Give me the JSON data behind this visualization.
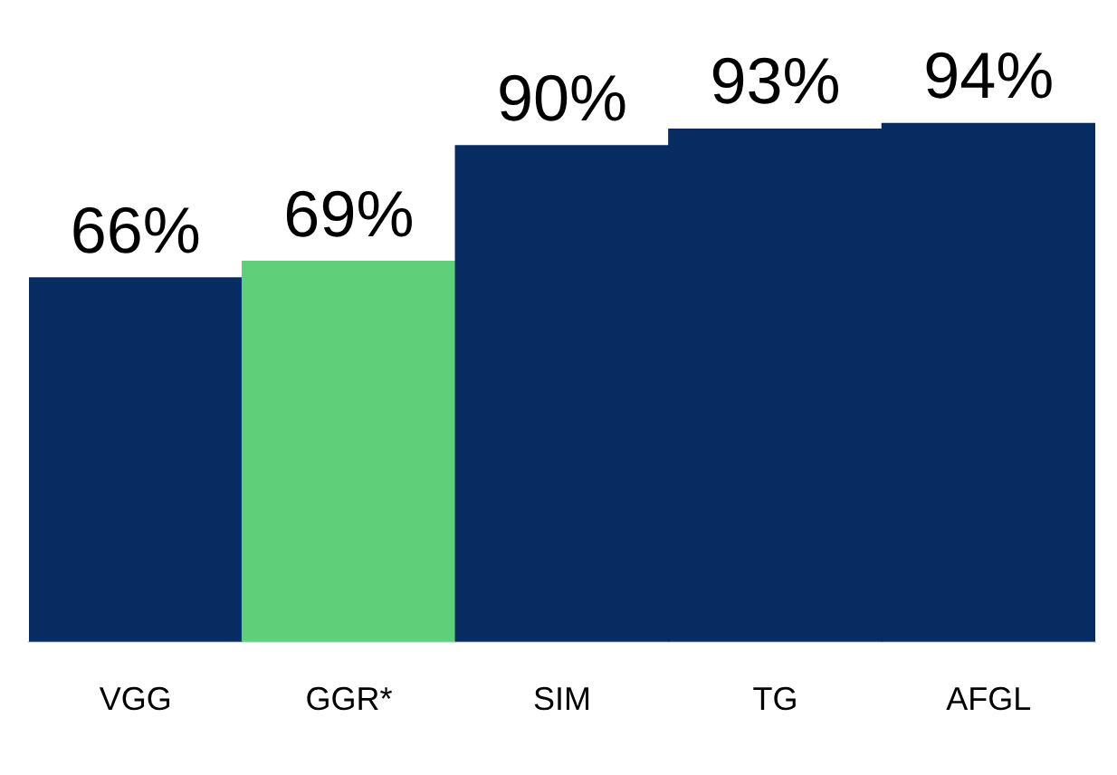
{
  "chart_data": {
    "type": "bar",
    "categories": [
      "VGG",
      "GGR*",
      "SIM",
      "TG",
      "AFGL"
    ],
    "values": [
      66,
      69,
      90,
      93,
      94
    ],
    "colors": [
      "#072c62",
      "#5fd07a",
      "#072c62",
      "#072c62",
      "#072c62"
    ],
    "value_labels": [
      "66%",
      "69%",
      "90%",
      "93%",
      "94%"
    ],
    "grid": false,
    "legend": false
  }
}
